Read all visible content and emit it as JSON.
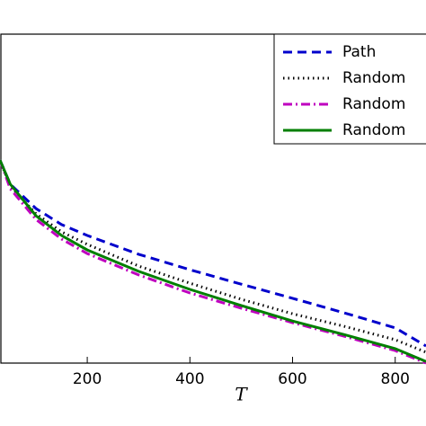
{
  "chart_data": {
    "type": "line",
    "x_label": "T",
    "x": [
      30,
      50,
      100,
      150,
      200,
      300,
      400,
      500,
      600,
      700,
      800,
      860
    ],
    "xlim": [
      30,
      860
    ],
    "xticks": [
      200,
      400,
      600,
      800
    ],
    "ylim": [
      0,
      1
    ],
    "legend": "upper right",
    "series": [
      {
        "name": "Path",
        "color": "#0000cc",
        "dash": "dashed",
        "values": [
          0.617,
          0.544,
          0.47,
          0.421,
          0.388,
          0.331,
          0.284,
          0.24,
          0.197,
          0.153,
          0.107,
          0.052
        ]
      },
      {
        "name": "Random",
        "color": "#000000",
        "dash": "dotted",
        "values": [
          0.617,
          0.538,
          0.454,
          0.399,
          0.361,
          0.295,
          0.243,
          0.194,
          0.15,
          0.112,
          0.071,
          0.033
        ]
      },
      {
        "name": "Random",
        "color": "#bf00bf",
        "dash": "dashdot",
        "values": [
          0.617,
          0.53,
          0.437,
          0.377,
          0.333,
          0.268,
          0.213,
          0.167,
          0.123,
          0.082,
          0.038,
          0.0
        ]
      },
      {
        "name": "Random",
        "color": "#007f00",
        "dash": "solid",
        "values": [
          0.617,
          0.544,
          0.448,
          0.388,
          0.344,
          0.279,
          0.224,
          0.175,
          0.128,
          0.087,
          0.044,
          0.005
        ]
      }
    ]
  }
}
